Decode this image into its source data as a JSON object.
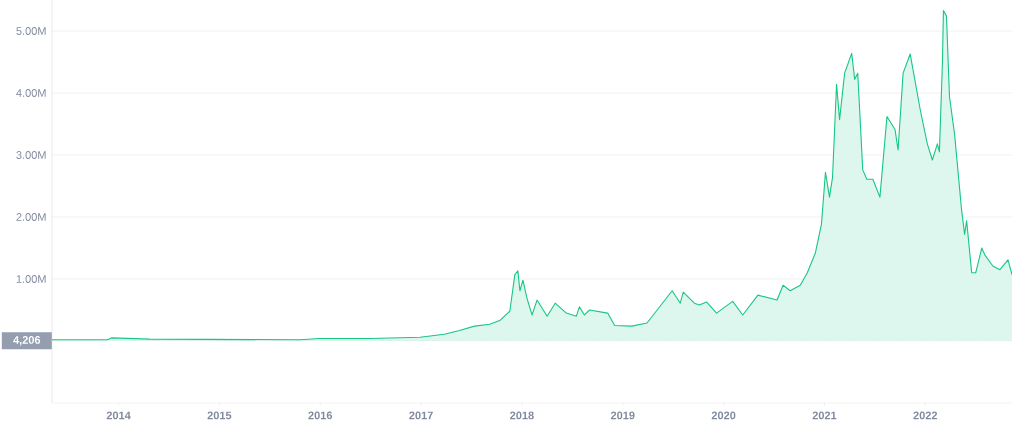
{
  "chart_data": {
    "type": "area",
    "color": "#16c784",
    "grid": "y",
    "xlim": [
      2013.34,
      2022.86
    ],
    "ylim": [
      -1000000,
      5500000
    ],
    "xticks": [
      2014,
      2015,
      2016,
      2017,
      2018,
      2019,
      2020,
      2021,
      2022
    ],
    "yticks": [
      {
        "value": 1000000,
        "label": "1.00M"
      },
      {
        "value": 2000000,
        "label": "2.00M"
      },
      {
        "value": 3000000,
        "label": "3.00M"
      },
      {
        "value": 4000000,
        "label": "4.00M"
      },
      {
        "value": 5000000,
        "label": "5.00M"
      }
    ],
    "ref_lines": [
      {
        "axis": "y",
        "value": 4206,
        "label": "4,206",
        "color": "#a6b0c3",
        "line_style": "dotted"
      }
    ],
    "x": [
      2013.34,
      2013.89,
      2013.93,
      2014.31,
      2015.8,
      2015.99,
      2016.49,
      2016.99,
      2017.23,
      2017.38,
      2017.53,
      2017.68,
      2017.78,
      2017.88,
      2017.93,
      2017.96,
      2017.98,
      2018.01,
      2018.05,
      2018.1,
      2018.15,
      2018.25,
      2018.33,
      2018.44,
      2018.54,
      2018.57,
      2018.62,
      2018.67,
      2018.85,
      2018.92,
      2019.09,
      2019.24,
      2019.37,
      2019.49,
      2019.57,
      2019.6,
      2019.71,
      2019.76,
      2019.83,
      2019.93,
      2020.09,
      2020.19,
      2020.34,
      2020.53,
      2020.59,
      2020.66,
      2020.76,
      2020.83,
      2020.91,
      2020.97,
      2021.01,
      2021.05,
      2021.08,
      2021.12,
      2021.15,
      2021.2,
      2021.27,
      2021.3,
      2021.33,
      2021.38,
      2021.42,
      2021.48,
      2021.55,
      2021.62,
      2021.7,
      2021.73,
      2021.78,
      2021.85,
      2021.95,
      2022.02,
      2022.07,
      2022.12,
      2022.14,
      2022.17,
      2022.18,
      2022.21,
      2022.24,
      2022.29,
      2022.36,
      2022.39,
      2022.41,
      2022.46,
      2022.5,
      2022.56,
      2022.59,
      2022.67,
      2022.74,
      2022.82,
      2022.86
    ],
    "values": [
      20000,
      20000,
      50000,
      30000,
      20000,
      40000,
      40000,
      60000,
      110000,
      170000,
      240000,
      270000,
      330000,
      480000,
      1070000,
      1130000,
      810000,
      980000,
      690000,
      420000,
      660000,
      400000,
      610000,
      450000,
      400000,
      550000,
      420000,
      500000,
      450000,
      250000,
      240000,
      290000,
      560000,
      810000,
      610000,
      790000,
      610000,
      580000,
      630000,
      450000,
      640000,
      420000,
      740000,
      660000,
      900000,
      810000,
      900000,
      1100000,
      1420000,
      1880000,
      2720000,
      2320000,
      2640000,
      4140000,
      3570000,
      4320000,
      4640000,
      4220000,
      4320000,
      2760000,
      2610000,
      2610000,
      2320000,
      3620000,
      3410000,
      3080000,
      4320000,
      4630000,
      3730000,
      3180000,
      2920000,
      3180000,
      3050000,
      4500000,
      5330000,
      5240000,
      3940000,
      3340000,
      2110000,
      1720000,
      1940000,
      1100000,
      1100000,
      1500000,
      1390000,
      1210000,
      1150000,
      1310000,
      1070000
    ]
  }
}
